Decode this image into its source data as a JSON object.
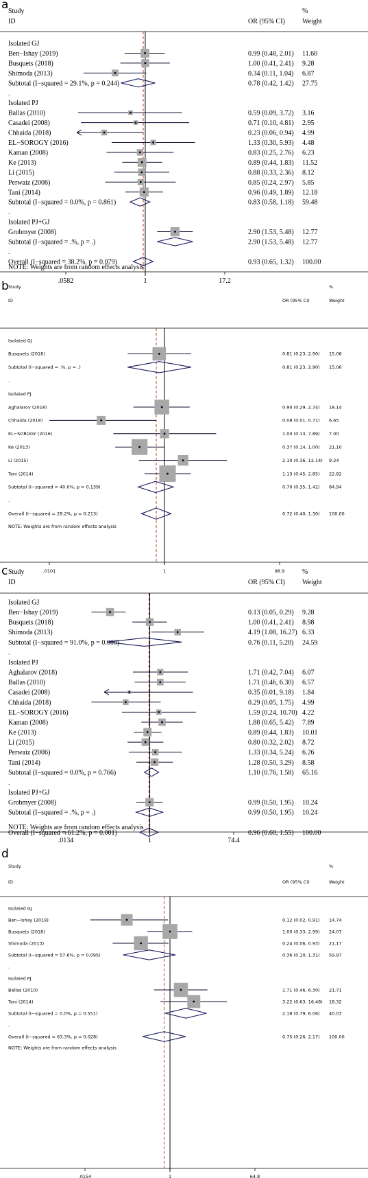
{
  "colors": {
    "text": "#000000",
    "square": "#a8a8a8",
    "ci_line": "#0a0a2e",
    "diamond": "#1a1a5e",
    "dashed": "#c0392b",
    "rule": "#000000"
  },
  "chart_data": [
    {
      "panel": "a",
      "type": "forest",
      "log_scale": true,
      "header": {
        "study": "Study",
        "id": "ID",
        "or": "OR (95% CI)",
        "pct": "%",
        "weight": "Weight"
      },
      "ticks": [
        {
          "value": 0.0582,
          "label": ".0582"
        },
        {
          "value": 1,
          "label": "1"
        },
        {
          "value": 17.2,
          "label": "17.2"
        }
      ],
      "xlim": [
        0.0582,
        17.2
      ],
      "overall_or": 0.93,
      "note": "NOTE: Weights are from random effects analysis",
      "rows": [
        {
          "kind": "group",
          "label": "Isolated GJ"
        },
        {
          "kind": "study",
          "label": "Ben−Ishay (2019)",
          "or": 0.99,
          "lo": 0.48,
          "hi": 2.01,
          "ci_text": "0.99 (0.48, 2.01)",
          "weight": "11.60"
        },
        {
          "kind": "study",
          "label": "Busquets (2018)",
          "or": 1.0,
          "lo": 0.41,
          "hi": 2.41,
          "ci_text": "1.00 (0.41, 2.41)",
          "weight": "9.28"
        },
        {
          "kind": "study",
          "label": "Shimoda (2013)",
          "or": 0.34,
          "lo": 0.11,
          "hi": 1.04,
          "ci_text": "0.34 (0.11, 1.04)",
          "weight": "6.87"
        },
        {
          "kind": "subtotal",
          "label": "Subtotal  (I−squared = 29.1%, p = 0.244)",
          "or": 0.78,
          "lo": 0.42,
          "hi": 1.42,
          "ci_text": "0.78 (0.42, 1.42)",
          "weight": "27.75"
        },
        {
          "kind": "dot",
          "label": "."
        },
        {
          "kind": "group",
          "label": "Isolated PJ"
        },
        {
          "kind": "study",
          "label": "Ballas (2010)",
          "or": 0.59,
          "lo": 0.09,
          "hi": 3.72,
          "ci_text": "0.59 (0.09, 3.72)",
          "weight": "3.16"
        },
        {
          "kind": "study",
          "label": "Casadei (2008)",
          "or": 0.71,
          "lo": 0.1,
          "hi": 4.81,
          "ci_text": "0.71 (0.10, 4.81)",
          "weight": "2.95"
        },
        {
          "kind": "study",
          "label": "Chhaida (2018)",
          "or": 0.23,
          "lo": 0.06,
          "hi": 0.94,
          "ci_text": "0.23 (0.06, 0.94)",
          "weight": "4.99",
          "arrow_left": true
        },
        {
          "kind": "study",
          "label": "EL−SOROGY (2016)",
          "or": 1.33,
          "lo": 0.3,
          "hi": 5.93,
          "ci_text": "1.33 (0.30, 5.93)",
          "weight": "4.48"
        },
        {
          "kind": "study",
          "label": "Kaman (2008)",
          "or": 0.83,
          "lo": 0.25,
          "hi": 2.76,
          "ci_text": "0.83 (0.25, 2.76)",
          "weight": "6.23"
        },
        {
          "kind": "study",
          "label": "Ke (2013)",
          "or": 0.89,
          "lo": 0.44,
          "hi": 1.83,
          "ci_text": "0.89 (0.44, 1.83)",
          "weight": "11.52"
        },
        {
          "kind": "study",
          "label": "Li (2015)",
          "or": 0.88,
          "lo": 0.33,
          "hi": 2.36,
          "ci_text": "0.88 (0.33, 2.36)",
          "weight": "8.12"
        },
        {
          "kind": "study",
          "label": "Perwaiz (2006)",
          "or": 0.85,
          "lo": 0.24,
          "hi": 2.97,
          "ci_text": "0.85 (0.24, 2.97)",
          "weight": "5.85"
        },
        {
          "kind": "study",
          "label": "Tani (2014)",
          "or": 0.96,
          "lo": 0.49,
          "hi": 1.89,
          "ci_text": "0.96 (0.49, 1.89)",
          "weight": "12.18"
        },
        {
          "kind": "subtotal",
          "label": "Subtotal  (I−squared = 0.0%, p = 0.861)",
          "or": 0.83,
          "lo": 0.58,
          "hi": 1.18,
          "ci_text": "0.83 (0.58, 1.18)",
          "weight": "59.48"
        },
        {
          "kind": "dot",
          "label": "."
        },
        {
          "kind": "group",
          "label": "Isolated PJ+GJ"
        },
        {
          "kind": "study",
          "label": "Grobmyer (2008)",
          "or": 2.9,
          "lo": 1.53,
          "hi": 5.48,
          "ci_text": "2.90 (1.53, 5.48)",
          "weight": "12.77"
        },
        {
          "kind": "subtotal",
          "label": "Subtotal  (I−squared = .%, p = .)",
          "or": 2.9,
          "lo": 1.53,
          "hi": 5.48,
          "ci_text": "2.90 (1.53, 5.48)",
          "weight": "12.77"
        },
        {
          "kind": "dot",
          "label": "."
        },
        {
          "kind": "overall",
          "label": "Overall  (I−squared = 38.2%, p = 0.079)",
          "or": 0.93,
          "lo": 0.65,
          "hi": 1.32,
          "ci_text": "0.93 (0.65, 1.32)",
          "weight": "100.00"
        }
      ]
    },
    {
      "panel": "b",
      "type": "forest",
      "log_scale": true,
      "header": {
        "study": "Study",
        "id": "ID",
        "or": "OR (95% CI)",
        "pct": "%",
        "weight": "Weight"
      },
      "ticks": [
        {
          "value": 0.0101,
          "label": ".0101"
        },
        {
          "value": 1,
          "label": "1"
        },
        {
          "value": 98.9,
          "label": "98.9"
        }
      ],
      "xlim": [
        0.0101,
        98.9
      ],
      "overall_or": 0.72,
      "note": "NOTE: Weights are from random effects analysis",
      "rows": [
        {
          "kind": "group",
          "label": "Isolated GJ"
        },
        {
          "kind": "study",
          "label": "Busquets (2018)",
          "or": 0.81,
          "lo": 0.23,
          "hi": 2.9,
          "ci_text": "0.81 (0.23, 2.90)",
          "weight": "15.06"
        },
        {
          "kind": "subtotal",
          "label": "Subtotal  (I−squared = .%, p = .)",
          "or": 0.81,
          "lo": 0.23,
          "hi": 2.9,
          "ci_text": "0.81 (0.23, 2.90)",
          "weight": "15.06"
        },
        {
          "kind": "dot",
          "label": "."
        },
        {
          "kind": "group",
          "label": "Isolated PJ"
        },
        {
          "kind": "study",
          "label": "Aghalarov (2018)",
          "or": 0.9,
          "lo": 0.29,
          "hi": 2.74,
          "ci_text": "0.90 (0.29, 2.74)",
          "weight": "18.14"
        },
        {
          "kind": "study",
          "label": "Chhaida (2018)",
          "or": 0.08,
          "lo": 0.01,
          "hi": 0.71,
          "ci_text": "0.08 (0.01, 0.71)",
          "weight": "6.65"
        },
        {
          "kind": "study",
          "label": "EL−SOROGY (2016)",
          "or": 1.0,
          "lo": 0.13,
          "hi": 7.89,
          "ci_text": "1.00 (0.13, 7.89)",
          "weight": "7.00"
        },
        {
          "kind": "study",
          "label": "Ke (2013)",
          "or": 0.37,
          "lo": 0.14,
          "hi": 1.0,
          "ci_text": "0.37 (0.14, 1.00)",
          "weight": "21.10"
        },
        {
          "kind": "study",
          "label": "Li (2015)",
          "or": 2.1,
          "lo": 0.36,
          "hi": 12.14,
          "ci_text": "2.10 (0.36, 12.14)",
          "weight": "9.24"
        },
        {
          "kind": "study",
          "label": "Tani (2014)",
          "or": 1.13,
          "lo": 0.45,
          "hi": 2.85,
          "ci_text": "1.13 (0.45, 2.85)",
          "weight": "22.82"
        },
        {
          "kind": "subtotal",
          "label": "Subtotal  (I−squared = 40.0%, p = 0.139)",
          "or": 0.7,
          "lo": 0.35,
          "hi": 1.42,
          "ci_text": "0.70 (0.35, 1.42)",
          "weight": "84.94"
        },
        {
          "kind": "dot",
          "label": "."
        },
        {
          "kind": "overall",
          "label": "Overall  (I−squared = 28.2%, p = 0.213)",
          "or": 0.72,
          "lo": 0.4,
          "hi": 1.3,
          "ci_text": "0.72 (0.40, 1.30)",
          "weight": "100.00"
        }
      ]
    },
    {
      "panel": "c",
      "type": "forest",
      "log_scale": true,
      "header": {
        "study": "Study",
        "id": "ID",
        "or": "OR (95% CI)",
        "pct": "%",
        "weight": "Weight"
      },
      "ticks": [
        {
          "value": 0.0134,
          "label": ".0134"
        },
        {
          "value": 1,
          "label": "1"
        },
        {
          "value": 74.4,
          "label": "74.4"
        }
      ],
      "xlim": [
        0.0134,
        74.4
      ],
      "overall_or": 0.96,
      "note": "NOTE: Weights are from random effects analysis",
      "rows": [
        {
          "kind": "group",
          "label": "Isolated GJ"
        },
        {
          "kind": "study",
          "label": "Ben−Ishay (2019)",
          "or": 0.13,
          "lo": 0.05,
          "hi": 0.29,
          "ci_text": "0.13 (0.05, 0.29)",
          "weight": "9.28"
        },
        {
          "kind": "study",
          "label": "Busquets (2018)",
          "or": 1.0,
          "lo": 0.41,
          "hi": 2.41,
          "ci_text": "1.00 (0.41, 2.41)",
          "weight": "8.98"
        },
        {
          "kind": "study",
          "label": "Shimoda (2013)",
          "or": 4.19,
          "lo": 1.08,
          "hi": 16.27,
          "ci_text": "4.19 (1.08, 16.27)",
          "weight": "6.33"
        },
        {
          "kind": "subtotal",
          "label": "Subtotal  (I−squared = 91.0%, p = 0.000)",
          "or": 0.76,
          "lo": 0.11,
          "hi": 5.2,
          "ci_text": "0.76 (0.11, 5.20)",
          "weight": "24.59"
        },
        {
          "kind": "dot",
          "label": "."
        },
        {
          "kind": "group",
          "label": "Isolated PJ"
        },
        {
          "kind": "study",
          "label": "Aghalarov (2018)",
          "or": 1.71,
          "lo": 0.42,
          "hi": 7.04,
          "ci_text": "1.71 (0.42, 7.04)",
          "weight": "6.07"
        },
        {
          "kind": "study",
          "label": "Ballas (2010)",
          "or": 1.71,
          "lo": 0.46,
          "hi": 6.3,
          "ci_text": "1.71 (0.46, 6.30)",
          "weight": "6.57"
        },
        {
          "kind": "study",
          "label": "Casadei (2008)",
          "or": 0.35,
          "lo": 0.01,
          "hi": 9.18,
          "ci_text": "0.35 (0.01, 9.18)",
          "weight": "1.84",
          "arrow_left": true
        },
        {
          "kind": "study",
          "label": "Chhaida (2018)",
          "or": 0.29,
          "lo": 0.05,
          "hi": 1.75,
          "ci_text": "0.29 (0.05, 1.75)",
          "weight": "4.99"
        },
        {
          "kind": "study",
          "label": "EL−SOROGY (2016)",
          "or": 1.59,
          "lo": 0.24,
          "hi": 10.7,
          "ci_text": "1.59 (0.24, 10.70)",
          "weight": "4.22"
        },
        {
          "kind": "study",
          "label": "Kaman (2008)",
          "or": 1.88,
          "lo": 0.65,
          "hi": 5.42,
          "ci_text": "1.88 (0.65, 5.42)",
          "weight": "7.89"
        },
        {
          "kind": "study",
          "label": "Ke (2013)",
          "or": 0.89,
          "lo": 0.44,
          "hi": 1.83,
          "ci_text": "0.89 (0.44, 1.83)",
          "weight": "10.01"
        },
        {
          "kind": "study",
          "label": "Li (2015)",
          "or": 0.8,
          "lo": 0.32,
          "hi": 2.02,
          "ci_text": "0.80 (0.32, 2.02)",
          "weight": "8.72"
        },
        {
          "kind": "study",
          "label": "Perwaiz (2006)",
          "or": 1.33,
          "lo": 0.34,
          "hi": 5.24,
          "ci_text": "1.33 (0.34, 5.24)",
          "weight": "6.26"
        },
        {
          "kind": "study",
          "label": "Tani (2014)",
          "or": 1.28,
          "lo": 0.5,
          "hi": 3.29,
          "ci_text": "1.28 (0.50, 3.29)",
          "weight": "8.58"
        },
        {
          "kind": "subtotal",
          "label": "Subtotal  (I−squared = 0.0%, p = 0.766)",
          "or": 1.1,
          "lo": 0.76,
          "hi": 1.58,
          "ci_text": "1.10 (0.76, 1.58)",
          "weight": "65.16"
        },
        {
          "kind": "dot",
          "label": "."
        },
        {
          "kind": "group",
          "label": "Isolated PJ+GJ"
        },
        {
          "kind": "study",
          "label": "Grobmyer (2008)",
          "or": 0.99,
          "lo": 0.5,
          "hi": 1.95,
          "ci_text": "0.99 (0.50, 1.95)",
          "weight": "10.24"
        },
        {
          "kind": "subtotal",
          "label": "Subtotal  (I−squared = .%, p = .)",
          "or": 0.99,
          "lo": 0.5,
          "hi": 1.95,
          "ci_text": "0.99 (0.50, 1.95)",
          "weight": "10.24"
        },
        {
          "kind": "dot",
          "label": "."
        },
        {
          "kind": "overall",
          "label": "Overall  (I−squared = 61.2%, p = 0.001)",
          "or": 0.96,
          "lo": 0.6,
          "hi": 1.55,
          "ci_text": "0.96 (0.60, 1.55)",
          "weight": "100.00"
        }
      ]
    },
    {
      "panel": "d",
      "type": "forest",
      "log_scale": true,
      "header": {
        "study": "Study",
        "id": "ID",
        "or": "OR (95% CI)",
        "pct": "%",
        "weight": "Weight"
      },
      "ticks": [
        {
          "value": 0.0154,
          "label": ".0154"
        },
        {
          "value": 1,
          "label": "1"
        },
        {
          "value": 64.8,
          "label": "64.8"
        }
      ],
      "xlim": [
        0.0154,
        64.8
      ],
      "overall_or": 0.75,
      "note": "NOTE: Weights are from random effects analysis",
      "rows": [
        {
          "kind": "group",
          "label": "Isolated GJ"
        },
        {
          "kind": "study",
          "label": "Ben−Ishay (2019)",
          "or": 0.12,
          "lo": 0.02,
          "hi": 0.91,
          "ci_text": "0.12 (0.02, 0.91)",
          "weight": "14.74"
        },
        {
          "kind": "study",
          "label": "Busquets (2018)",
          "or": 1.0,
          "lo": 0.33,
          "hi": 2.99,
          "ci_text": "1.00 (0.33, 2.99)",
          "weight": "24.07"
        },
        {
          "kind": "study",
          "label": "Shimoda (2013)",
          "or": 0.24,
          "lo": 0.06,
          "hi": 0.93,
          "ci_text": "0.24 (0.06, 0.93)",
          "weight": "21.17"
        },
        {
          "kind": "subtotal",
          "label": "Subtotal  (I−squared = 57.6%, p = 0.095)",
          "or": 0.36,
          "lo": 0.1,
          "hi": 1.31,
          "ci_text": "0.36 (0.10, 1.31)",
          "weight": "59.97"
        },
        {
          "kind": "dot",
          "label": "."
        },
        {
          "kind": "group",
          "label": "Isolated PJ"
        },
        {
          "kind": "study",
          "label": "Ballas (2010)",
          "or": 1.71,
          "lo": 0.46,
          "hi": 6.3,
          "ci_text": "1.71 (0.46, 6.30)",
          "weight": "21.71"
        },
        {
          "kind": "study",
          "label": "Tani (2014)",
          "or": 3.22,
          "lo": 0.63,
          "hi": 16.48,
          "ci_text": "3.22 (0.63, 16.48)",
          "weight": "18.32"
        },
        {
          "kind": "subtotal",
          "label": "Subtotal  (I−squared = 0.0%, p = 0.551)",
          "or": 2.18,
          "lo": 0.79,
          "hi": 6.06,
          "ci_text": "2.18 (0.79, 6.06)",
          "weight": "40.03"
        },
        {
          "kind": "dot",
          "label": "."
        },
        {
          "kind": "overall",
          "label": "Overall  (I−squared = 63.3%, p = 0.028)",
          "or": 0.75,
          "lo": 0.26,
          "hi": 2.17,
          "ci_text": "0.75 (0.26, 2.17)",
          "weight": "100.00"
        }
      ]
    }
  ]
}
